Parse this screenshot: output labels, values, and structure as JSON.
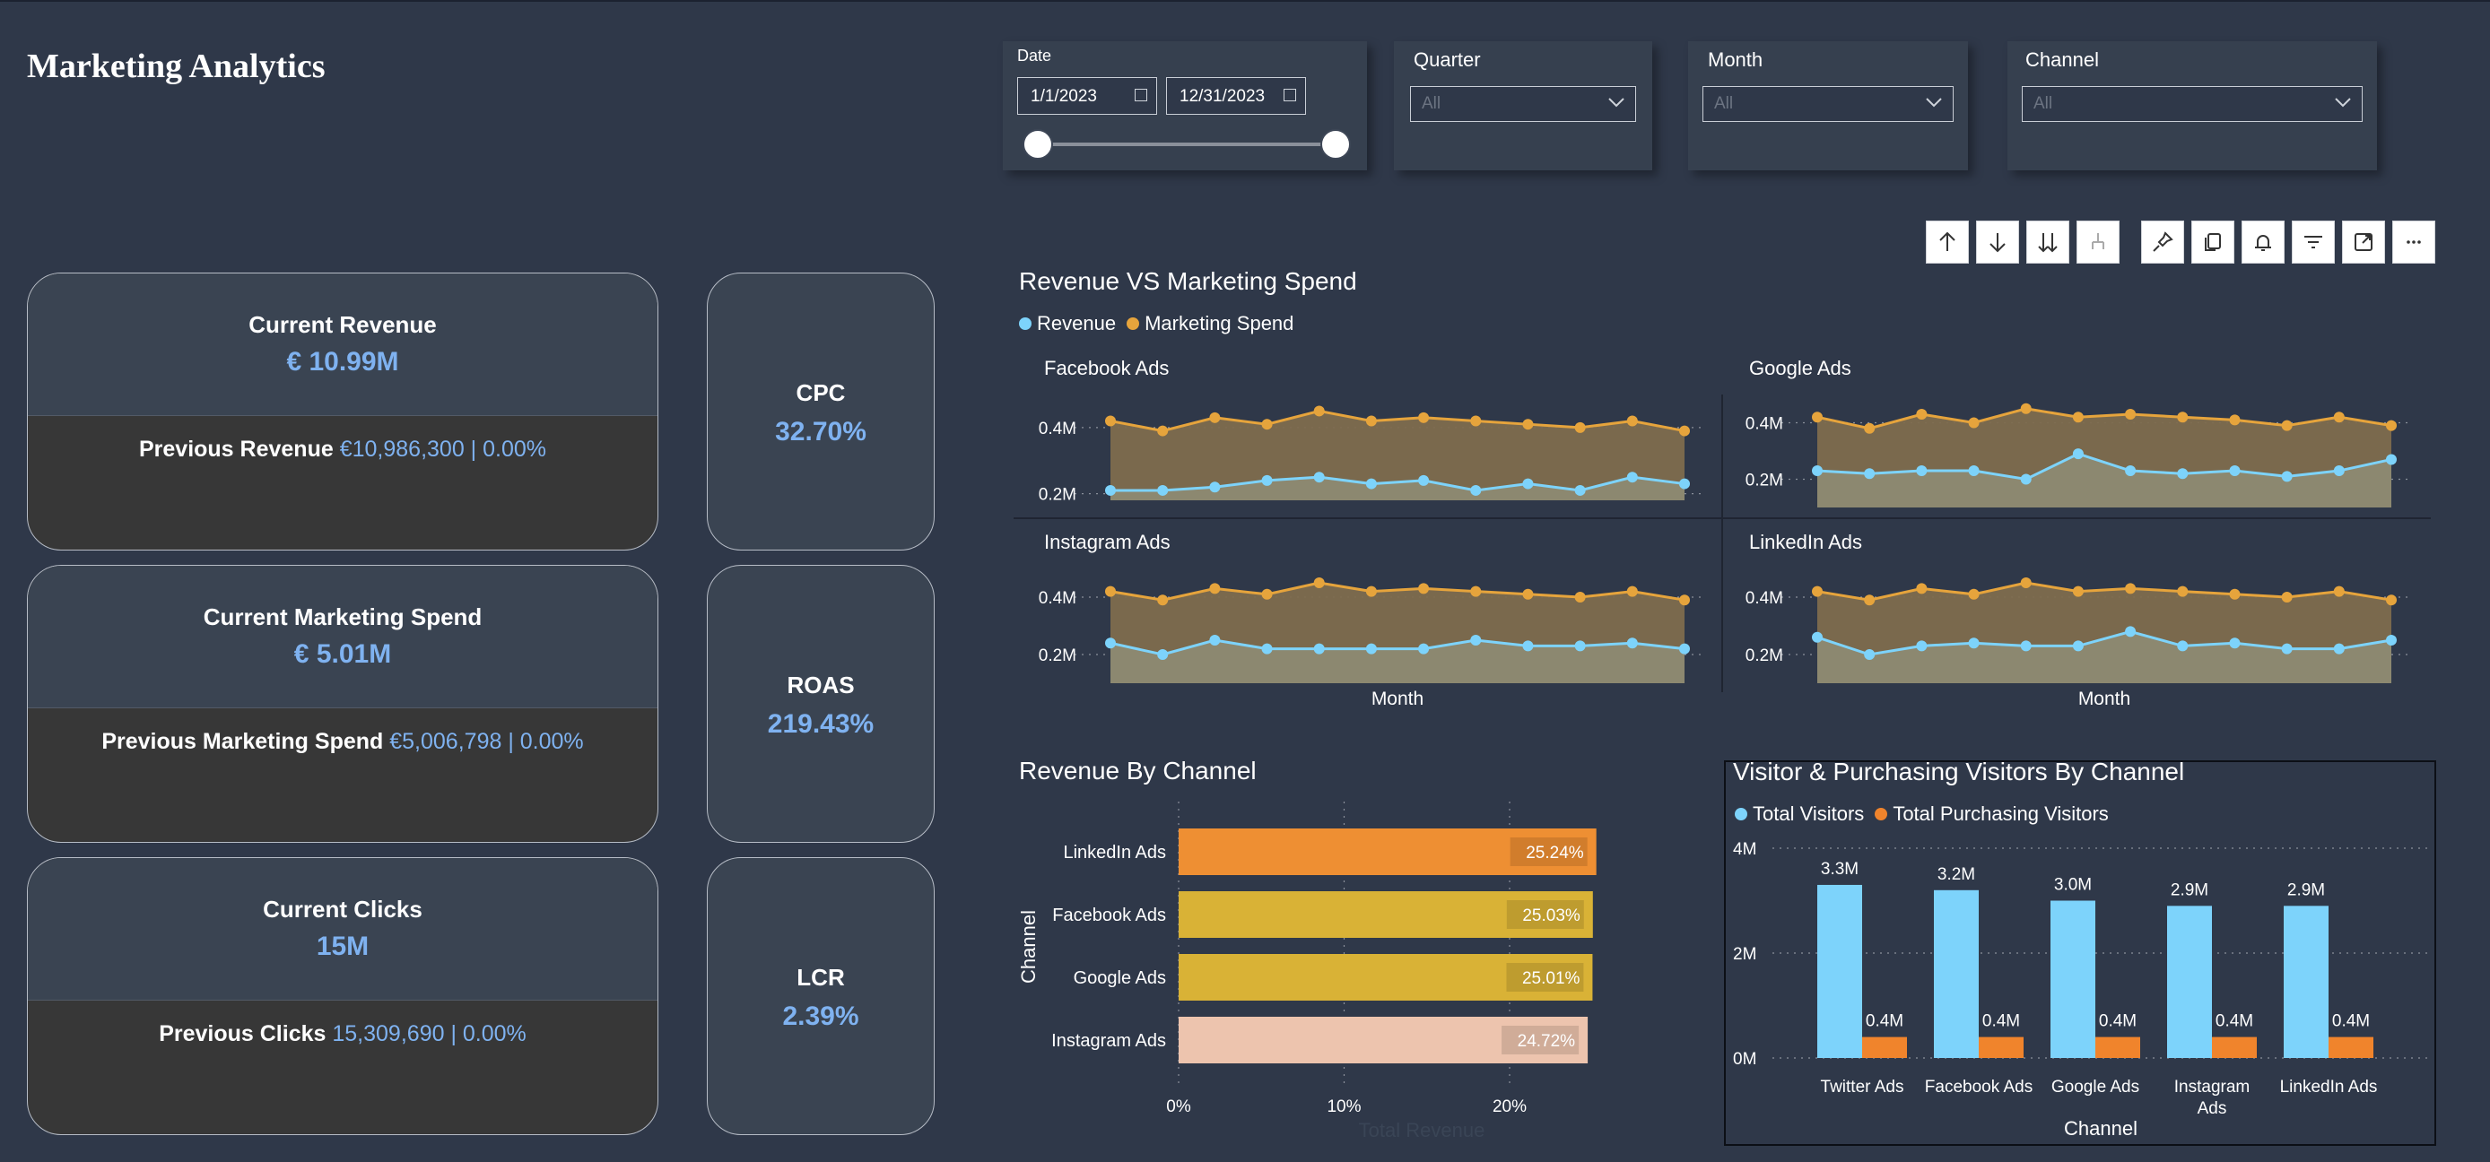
{
  "title": "Marketing Analytics",
  "colors": {
    "background": "#2f3849",
    "revenue": "#7dd3fb",
    "spend": "#e6a43c",
    "visitors": "#7dd3fb",
    "purchasing": "#f0842c",
    "accent_value": "#7fb2f0"
  },
  "slicers": {
    "date": {
      "label": "Date",
      "start": "1/1/2023",
      "end": "12/31/2023"
    },
    "quarter": {
      "label": "Quarter",
      "value": "All"
    },
    "month": {
      "label": "Month",
      "value": "All"
    },
    "channel": {
      "label": "Channel",
      "value": "All"
    }
  },
  "toolbar": {
    "icons": [
      "arrow-up-icon",
      "arrow-down-icon",
      "double-arrow-down-icon",
      "expand-hierarchy-icon",
      "pin-icon",
      "copy-icon",
      "bell-icon",
      "filter-icon",
      "focus-mode-icon",
      "more-options-icon"
    ]
  },
  "kpis": [
    {
      "label": "Current Revenue",
      "value": "€ 10.99M",
      "prev_label": "Previous Revenue",
      "prev_value": "€10,986,300 | 0.00%"
    },
    {
      "label": "Current Marketing Spend",
      "value": "€ 5.01M",
      "prev_label": "Previous Marketing Spend",
      "prev_value": "€5,006,798 | 0.00%"
    },
    {
      "label": "Current Clicks",
      "value": "15M",
      "prev_label": "Previous Clicks",
      "prev_value": "15,309,690 | 0.00%"
    }
  ],
  "minis": [
    {
      "label": "CPC",
      "value": "32.70%"
    },
    {
      "label": "ROAS",
      "value": "219.43%"
    },
    {
      "label": "LCR",
      "value": "2.39%"
    }
  ],
  "line_chart": {
    "title": "Revenue VS Marketing Spend",
    "legend": [
      "Revenue",
      "Marketing Spend"
    ],
    "x_axis_label": "Month",
    "y_ticks": [
      "0.4M",
      "0.2M"
    ],
    "y_tick_values": [
      0.4,
      0.2
    ],
    "panels_title": [
      "Facebook Ads",
      "Google Ads",
      "Instagram Ads",
      "LinkedIn Ads"
    ]
  },
  "bar_chart": {
    "title": "Revenue By Channel",
    "y_axis_label": "Channel",
    "x_axis_label": "Total Revenue",
    "x_ticks": [
      "0%",
      "10%",
      "20%"
    ],
    "bar_labels": [
      "25.24%",
      "25.03%",
      "25.01%",
      "24.72%"
    ],
    "bar_colors": [
      "#ee8f33",
      "#d9b236",
      "#d9b236",
      "#edc4ae"
    ]
  },
  "visitors_chart": {
    "title": "Visitor & Purchasing Visitors By Channel",
    "legend": [
      "Total Visitors",
      "Total Purchasing Visitors"
    ],
    "x_axis_label": "Channel",
    "y_ticks": [
      "4M",
      "2M",
      "0M"
    ],
    "visitor_labels": [
      "3.3M",
      "3.2M",
      "3.0M",
      "2.9M",
      "2.9M"
    ],
    "purchasing_labels": [
      "0.4M",
      "0.4M",
      "0.4M",
      "0.4M",
      "0.4M"
    ]
  },
  "chart_data": [
    {
      "type": "line",
      "title": "Revenue VS Marketing Spend",
      "xlabel": "Month",
      "ylabel": "",
      "x": [
        1,
        2,
        3,
        4,
        5,
        6,
        7,
        8,
        9,
        10,
        11,
        12
      ],
      "panels": [
        {
          "name": "Facebook Ads",
          "ylim": [
            0.18,
            0.5
          ],
          "series": [
            {
              "name": "Revenue",
              "values": [
                0.21,
                0.21,
                0.22,
                0.24,
                0.25,
                0.23,
                0.24,
                0.21,
                0.23,
                0.21,
                0.25,
                0.23
              ]
            },
            {
              "name": "Marketing Spend",
              "values": [
                0.42,
                0.39,
                0.43,
                0.41,
                0.45,
                0.42,
                0.43,
                0.42,
                0.41,
                0.4,
                0.42,
                0.39
              ]
            }
          ]
        },
        {
          "name": "Google Ads",
          "ylim": [
            0.1,
            0.5
          ],
          "series": [
            {
              "name": "Revenue",
              "values": [
                0.23,
                0.22,
                0.23,
                0.23,
                0.2,
                0.29,
                0.23,
                0.22,
                0.23,
                0.21,
                0.23,
                0.27
              ]
            },
            {
              "name": "Marketing Spend",
              "values": [
                0.42,
                0.38,
                0.43,
                0.4,
                0.45,
                0.42,
                0.43,
                0.42,
                0.41,
                0.39,
                0.42,
                0.39
              ]
            }
          ]
        },
        {
          "name": "Instagram Ads",
          "ylim": [
            0.1,
            0.5
          ],
          "series": [
            {
              "name": "Revenue",
              "values": [
                0.24,
                0.2,
                0.25,
                0.22,
                0.22,
                0.22,
                0.22,
                0.25,
                0.23,
                0.23,
                0.24,
                0.22
              ]
            },
            {
              "name": "Marketing Spend",
              "values": [
                0.42,
                0.39,
                0.43,
                0.41,
                0.45,
                0.42,
                0.43,
                0.42,
                0.41,
                0.4,
                0.42,
                0.39
              ]
            }
          ]
        },
        {
          "name": "LinkedIn Ads",
          "ylim": [
            0.1,
            0.5
          ],
          "series": [
            {
              "name": "Revenue",
              "values": [
                0.26,
                0.2,
                0.23,
                0.24,
                0.23,
                0.23,
                0.28,
                0.23,
                0.24,
                0.22,
                0.22,
                0.25
              ]
            },
            {
              "name": "Marketing Spend",
              "values": [
                0.42,
                0.39,
                0.43,
                0.41,
                0.45,
                0.42,
                0.43,
                0.42,
                0.41,
                0.4,
                0.42,
                0.39
              ]
            }
          ]
        }
      ]
    },
    {
      "type": "bar",
      "orientation": "horizontal",
      "title": "Revenue By Channel",
      "xlabel": "Total Revenue",
      "ylabel": "Channel",
      "categories": [
        "LinkedIn Ads",
        "Facebook Ads",
        "Google Ads",
        "Instagram Ads"
      ],
      "values": [
        25.24,
        25.03,
        25.01,
        24.72
      ],
      "xlim": [
        0,
        25
      ]
    },
    {
      "type": "bar",
      "title": "Visitor & Purchasing Visitors By Channel",
      "xlabel": "Channel",
      "ylabel": "",
      "categories": [
        "Twitter Ads",
        "Facebook Ads",
        "Google Ads",
        "Instagram Ads",
        "LinkedIn Ads"
      ],
      "series": [
        {
          "name": "Total Visitors",
          "values": [
            3.3,
            3.2,
            3.0,
            2.9,
            2.9
          ]
        },
        {
          "name": "Total Purchasing Visitors",
          "values": [
            0.4,
            0.4,
            0.4,
            0.4,
            0.4
          ]
        }
      ],
      "ylim": [
        0,
        4
      ]
    }
  ]
}
